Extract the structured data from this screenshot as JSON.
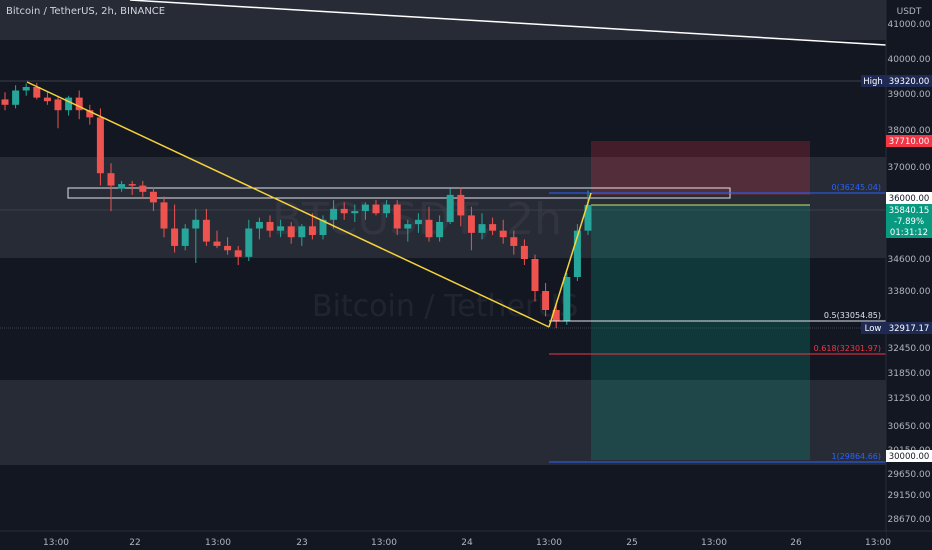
{
  "header": {
    "title": "Bitcoin / TetherUS, 2h, BINANCE"
  },
  "watermark": {
    "symbol": "BTCUSDT, 2h",
    "name": "Bitcoin / TetherUS"
  },
  "axis": {
    "currency": "USDT"
  },
  "colors": {
    "bg": "#131722",
    "up": "#26a69a",
    "down": "#ef5350",
    "trend": "#f5d33a",
    "fib_blue": "#2962ff",
    "fib_red": "#f23645",
    "white": "#e0e3eb"
  },
  "chart_data": {
    "type": "candlestick",
    "symbol": "Bitcoin / TetherUS",
    "timeframe": "2h",
    "exchange": "BINANCE",
    "y_ticks": [
      "41000.00",
      "40000.00",
      "39000.00",
      "38000.00",
      "37000.00",
      "36000.00",
      "34600.00",
      "33800.00",
      "32450.00",
      "31850.00",
      "31250.00",
      "30650.00",
      "30150.00",
      "29650.00",
      "29150.00",
      "28670.00"
    ],
    "x_ticks": [
      "13:00",
      "22",
      "13:00",
      "23",
      "13:00",
      "24",
      "13:00",
      "25",
      "13:00",
      "26",
      "13:00"
    ],
    "price_labels": [
      {
        "tag": "High",
        "value": "39320.00",
        "style": "navy"
      },
      {
        "value": "37710.00",
        "style": "red"
      },
      {
        "value": "36000.00",
        "style": "white"
      },
      {
        "value": "35840.15",
        "change": "-7.89%",
        "timer": "01:31:12",
        "style": "teal"
      },
      {
        "tag": "Low",
        "value": "32917.17",
        "style": "navy"
      },
      {
        "value": "30000.00",
        "style": "white"
      }
    ],
    "fib_levels": [
      {
        "label": "0(36245.04)",
        "price": 36245.04,
        "color": "blue"
      },
      {
        "label": "0.5(33054.85)",
        "price": 33054.85,
        "color": "white"
      },
      {
        "label": "0.618(32301.97)",
        "price": 32301.97,
        "color": "red"
      },
      {
        "label": "1(29864.66)",
        "price": 29864.66,
        "color": "blue"
      }
    ],
    "candles": [
      {
        "o": 38850,
        "h": 39050,
        "l": 38550,
        "c": 38700
      },
      {
        "o": 38700,
        "h": 39250,
        "l": 38600,
        "c": 39100
      },
      {
        "o": 39100,
        "h": 39300,
        "l": 38950,
        "c": 39200
      },
      {
        "o": 39200,
        "h": 39320,
        "l": 38850,
        "c": 38900
      },
      {
        "o": 38900,
        "h": 39050,
        "l": 38700,
        "c": 38800
      },
      {
        "o": 38850,
        "h": 38950,
        "l": 38050,
        "c": 38550
      },
      {
        "o": 38550,
        "h": 38950,
        "l": 38400,
        "c": 38900
      },
      {
        "o": 38900,
        "h": 39100,
        "l": 38300,
        "c": 38550
      },
      {
        "o": 38550,
        "h": 38700,
        "l": 38150,
        "c": 38350
      },
      {
        "o": 38350,
        "h": 38600,
        "l": 36400,
        "c": 36800
      },
      {
        "o": 36800,
        "h": 37100,
        "l": 35700,
        "c": 36400
      },
      {
        "o": 36300,
        "h": 36550,
        "l": 36200,
        "c": 36450
      },
      {
        "o": 36450,
        "h": 36550,
        "l": 36100,
        "c": 36400
      },
      {
        "o": 36400,
        "h": 36550,
        "l": 36000,
        "c": 36200
      },
      {
        "o": 36200,
        "h": 36350,
        "l": 35700,
        "c": 35900
      },
      {
        "o": 35900,
        "h": 36050,
        "l": 35100,
        "c": 35300
      },
      {
        "o": 35300,
        "h": 35850,
        "l": 34750,
        "c": 34900
      },
      {
        "o": 34900,
        "h": 35400,
        "l": 34800,
        "c": 35300
      },
      {
        "o": 35300,
        "h": 35750,
        "l": 34500,
        "c": 35500
      },
      {
        "o": 35500,
        "h": 35750,
        "l": 34900,
        "c": 35000
      },
      {
        "o": 35000,
        "h": 35250,
        "l": 34850,
        "c": 34900
      },
      {
        "o": 34900,
        "h": 35100,
        "l": 34700,
        "c": 34800
      },
      {
        "o": 34800,
        "h": 34900,
        "l": 34450,
        "c": 34650
      },
      {
        "o": 34650,
        "h": 35500,
        "l": 34550,
        "c": 35300
      },
      {
        "o": 35300,
        "h": 35550,
        "l": 35050,
        "c": 35450
      },
      {
        "o": 35450,
        "h": 35600,
        "l": 35100,
        "c": 35250
      },
      {
        "o": 35250,
        "h": 35500,
        "l": 35100,
        "c": 35350
      },
      {
        "o": 35350,
        "h": 35450,
        "l": 34950,
        "c": 35100
      },
      {
        "o": 35100,
        "h": 35400,
        "l": 34900,
        "c": 35350
      },
      {
        "o": 35350,
        "h": 35650,
        "l": 35050,
        "c": 35150
      },
      {
        "o": 35150,
        "h": 35600,
        "l": 35050,
        "c": 35500
      },
      {
        "o": 35500,
        "h": 35950,
        "l": 35300,
        "c": 35750
      },
      {
        "o": 35750,
        "h": 35900,
        "l": 35500,
        "c": 35650
      },
      {
        "o": 35650,
        "h": 35850,
        "l": 35450,
        "c": 35700
      },
      {
        "o": 35700,
        "h": 35900,
        "l": 35500,
        "c": 35850
      },
      {
        "o": 35850,
        "h": 35950,
        "l": 35600,
        "c": 35650
      },
      {
        "o": 35650,
        "h": 35950,
        "l": 35550,
        "c": 35850
      },
      {
        "o": 35850,
        "h": 35950,
        "l": 35150,
        "c": 35300
      },
      {
        "o": 35300,
        "h": 35500,
        "l": 35000,
        "c": 35400
      },
      {
        "o": 35400,
        "h": 35650,
        "l": 35200,
        "c": 35500
      },
      {
        "o": 35500,
        "h": 35800,
        "l": 35000,
        "c": 35100
      },
      {
        "o": 35100,
        "h": 35600,
        "l": 35000,
        "c": 35450
      },
      {
        "o": 35450,
        "h": 36300,
        "l": 35400,
        "c": 36100
      },
      {
        "o": 36100,
        "h": 36350,
        "l": 35350,
        "c": 35600
      },
      {
        "o": 35600,
        "h": 35800,
        "l": 34800,
        "c": 35200
      },
      {
        "o": 35200,
        "h": 35650,
        "l": 35050,
        "c": 35400
      },
      {
        "o": 35400,
        "h": 35550,
        "l": 35150,
        "c": 35250
      },
      {
        "o": 35250,
        "h": 35500,
        "l": 34950,
        "c": 35100
      },
      {
        "o": 35100,
        "h": 35250,
        "l": 34700,
        "c": 34900
      },
      {
        "o": 34900,
        "h": 35050,
        "l": 34450,
        "c": 34600
      },
      {
        "o": 34600,
        "h": 34700,
        "l": 33550,
        "c": 33800
      },
      {
        "o": 33800,
        "h": 34000,
        "l": 33200,
        "c": 33350
      },
      {
        "o": 33350,
        "h": 33500,
        "l": 32920,
        "c": 33100
      },
      {
        "o": 33100,
        "h": 34250,
        "l": 33000,
        "c": 34150
      },
      {
        "o": 34150,
        "h": 35400,
        "l": 34050,
        "c": 35250
      },
      {
        "o": 35250,
        "h": 36245,
        "l": 35150,
        "c": 35840
      }
    ]
  }
}
